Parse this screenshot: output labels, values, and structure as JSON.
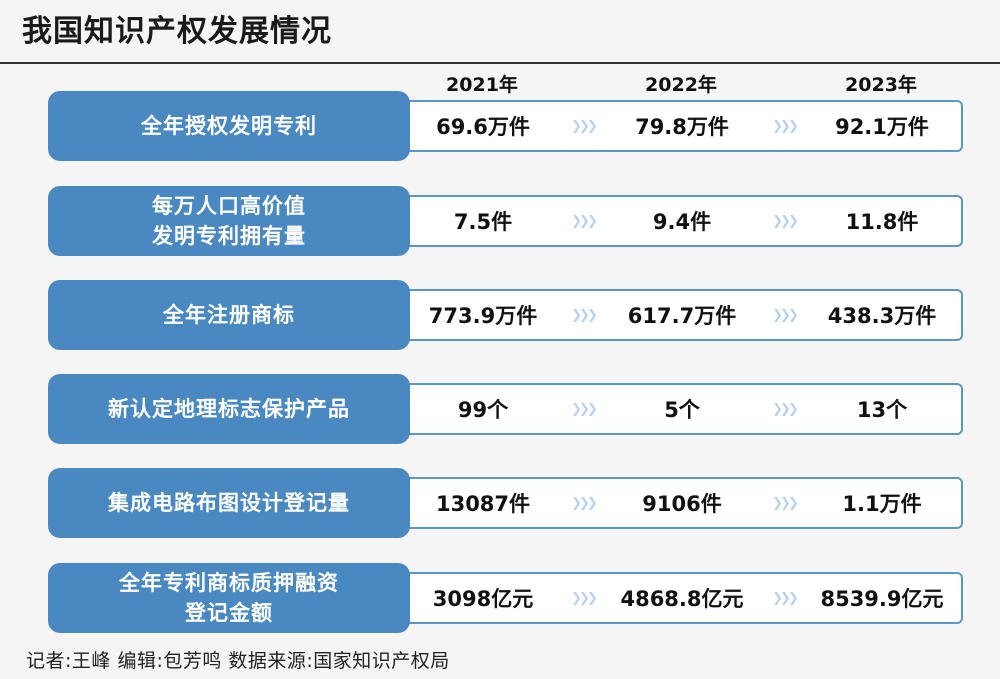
{
  "title": "我国知识产权发展情况",
  "chart_data": {
    "type": "table",
    "title": "我国知识产权发展情况",
    "columns": [
      "2021年",
      "2022年",
      "2023年"
    ],
    "rows": [
      {
        "label": "全年授权发明专利",
        "values": [
          "69.6万件",
          "79.8万件",
          "92.1万件"
        ]
      },
      {
        "label": "每万人口高价值\n发明专利拥有量",
        "values": [
          "7.5件",
          "9.4件",
          "11.8件"
        ]
      },
      {
        "label": "全年注册商标",
        "values": [
          "773.9万件",
          "617.7万件",
          "438.3万件"
        ]
      },
      {
        "label": "新认定地理标志保护产品",
        "values": [
          "99个",
          "5个",
          "13个"
        ]
      },
      {
        "label": "集成电路布图设计登记量",
        "values": [
          "13087件",
          "9106件",
          "1.1万件"
        ]
      },
      {
        "label": "全年专利商标质押融资\n登记金额",
        "values": [
          "3098亿元",
          "4868.8亿元",
          "8539.9亿元"
        ]
      }
    ]
  },
  "arrow_glyph": "❯❯❯",
  "colors": {
    "label_bg": "#4a88c2",
    "box_border": "#5b96c9",
    "arrow": "#b9d3ec"
  },
  "footer": "记者:王峰   编辑:包芳鸣   数据来源:国家知识产权局"
}
